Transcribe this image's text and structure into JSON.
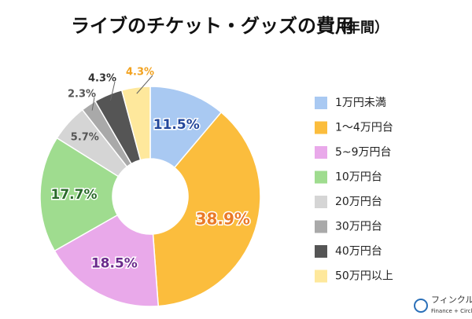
{
  "chart_data": {
    "type": "donut",
    "title": "ライブのチケット・グッズの費用",
    "subtitle": "（年間）",
    "categories": [
      "1万円未満",
      "1～4万円台",
      "5~9万円台",
      "10万円台",
      "20万円台",
      "30万円台",
      "40万円台",
      "50万円以上"
    ],
    "values": [
      11.5,
      38.9,
      18.5,
      17.7,
      5.7,
      2.3,
      4.3,
      4.3
    ],
    "value_labels": [
      "11.5%",
      "38.9%",
      "18.5%",
      "17.7%",
      "5.7%",
      "2.3%",
      "4.3%",
      "4.3%"
    ],
    "colors": [
      "#a9c9f2",
      "#fbbd3d",
      "#e9a9ea",
      "#9fdc8f",
      "#d5d5d5",
      "#a9a9a9",
      "#555555",
      "#fee89c"
    ],
    "label_colors": [
      "#23479b",
      "#ea7a27",
      "#6b2a8c",
      "#2a6b2a",
      "#555555",
      "#555555",
      "#333333",
      "#f2a21f"
    ],
    "legend": "right",
    "logo": {
      "name": "フィンクル",
      "tagline": "Finance + Circle"
    }
  }
}
